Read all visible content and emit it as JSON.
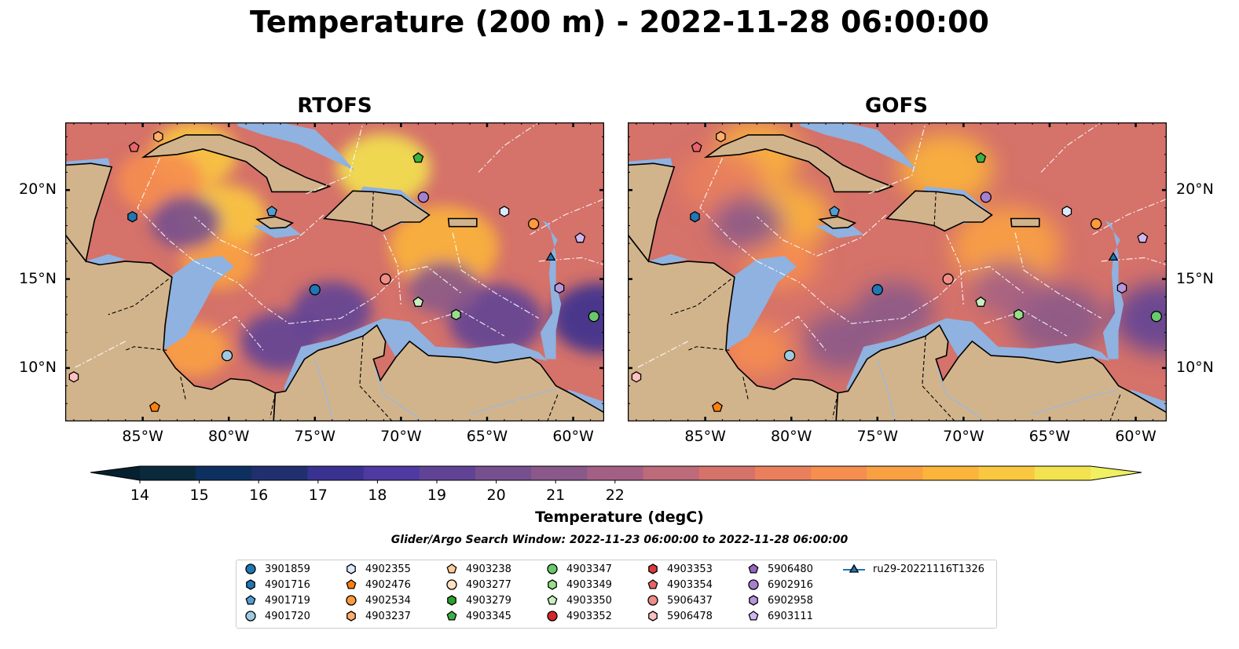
{
  "title": "Temperature (200 m) - 2022-11-28 06:00:00",
  "panels": [
    {
      "id": "rtofs",
      "title": "RTOFS"
    },
    {
      "id": "gofs",
      "title": "GOFS"
    }
  ],
  "map": {
    "lon_ticks": [
      "85°W",
      "80°W",
      "75°W",
      "70°W",
      "65°W",
      "60°W"
    ],
    "lat_ticks": [
      "20°N",
      "15°N",
      "10°N"
    ],
    "land_color": "#d2b48c",
    "shelf_color": "#8fb2e0",
    "extent": {
      "lon": [
        -89.5,
        -58.2
      ],
      "lat": [
        7.0,
        23.8
      ]
    }
  },
  "colorbar": {
    "ticks": [
      "14",
      "15",
      "16",
      "17",
      "18",
      "19",
      "20",
      "21",
      "22"
    ],
    "label": "Temperature (degC)",
    "range": [
      14,
      22
    ],
    "colors": [
      "#0a2a3c",
      "#0e3060",
      "#20306f",
      "#3a3290",
      "#4e3aa0",
      "#614396",
      "#76508e",
      "#8a598a",
      "#a45f84",
      "#bd6a7a",
      "#d5726a",
      "#e97f5d",
      "#f68e4f",
      "#f9a142",
      "#fbb43c",
      "#fac840",
      "#f2e250"
    ],
    "extend": "both",
    "extend_low_color": "#062030",
    "extend_high_color": "#f0f060"
  },
  "search_window": "Glider/Argo Search Window: 2022-11-23 06:00:00 to 2022-11-28 06:00:00",
  "legend": [
    {
      "label": "3901859",
      "marker": "circle",
      "color": "#1f77b4"
    },
    {
      "label": "4901716",
      "marker": "hexagon",
      "color": "#1f77b4"
    },
    {
      "label": "4901719",
      "marker": "pentagon",
      "color": "#4f9fd4"
    },
    {
      "label": "4901720",
      "marker": "circle",
      "color": "#9ecae1"
    },
    {
      "label": "4902355",
      "marker": "hexagon",
      "color": "#dbeafb"
    },
    {
      "label": "4902476",
      "marker": "pentagon",
      "color": "#ff7f0e"
    },
    {
      "label": "4902534",
      "marker": "circle",
      "color": "#ff9a3c"
    },
    {
      "label": "4903237",
      "marker": "hexagon",
      "color": "#ffae6b"
    },
    {
      "label": "4903238",
      "marker": "pentagon",
      "color": "#ffcc99"
    },
    {
      "label": "4903277",
      "marker": "circle",
      "color": "#ffe0c2"
    },
    {
      "label": "4903279",
      "marker": "hexagon",
      "color": "#2ca02c"
    },
    {
      "label": "4903345",
      "marker": "pentagon",
      "color": "#3cb043"
    },
    {
      "label": "4903347",
      "marker": "circle",
      "color": "#69c96b"
    },
    {
      "label": "4903349",
      "marker": "hexagon",
      "color": "#98df8a"
    },
    {
      "label": "4903350",
      "marker": "pentagon",
      "color": "#c7f0c0"
    },
    {
      "label": "4903352",
      "marker": "circle",
      "color": "#d62728"
    },
    {
      "label": "4903353",
      "marker": "hexagon",
      "color": "#d93a3c"
    },
    {
      "label": "4903354",
      "marker": "pentagon",
      "color": "#e8646a"
    },
    {
      "label": "5906437",
      "marker": "circle",
      "color": "#f08c86"
    },
    {
      "label": "5906478",
      "marker": "hexagon",
      "color": "#ffc0c0"
    },
    {
      "label": "5906480",
      "marker": "pentagon",
      "color": "#9467bd"
    },
    {
      "label": "6902916",
      "marker": "circle",
      "color": "#a77fd0"
    },
    {
      "label": "6902958",
      "marker": "hexagon",
      "color": "#b796dd"
    },
    {
      "label": "6903111",
      "marker": "pentagon",
      "color": "#d1b7f0"
    },
    {
      "label": "ru29-20221116T1326",
      "marker": "triangle-line",
      "color": "#1f77b4"
    }
  ],
  "floats": [
    {
      "id": "5906478",
      "marker": "hexagon",
      "color": "#ffc0c0",
      "lon": -89.0,
      "lat": 9.5
    },
    {
      "id": "4902476",
      "marker": "pentagon",
      "color": "#ff7f0e",
      "lon": -84.3,
      "lat": 7.8
    },
    {
      "id": "4903354",
      "marker": "pentagon",
      "color": "#e8646a",
      "lon": -85.5,
      "lat": 22.4
    },
    {
      "id": "4903237",
      "marker": "hexagon",
      "color": "#ffae6b",
      "lon": -84.1,
      "lat": 23.0
    },
    {
      "id": "4901716",
      "marker": "hexagon",
      "color": "#1f77b4",
      "lon": -85.6,
      "lat": 18.5
    },
    {
      "id": "4901719",
      "marker": "pentagon",
      "color": "#4f9fd4",
      "lon": -77.5,
      "lat": 18.8
    },
    {
      "id": "4903345",
      "marker": "pentagon",
      "color": "#3cb043",
      "lon": -69.0,
      "lat": 21.8
    },
    {
      "id": "6902916",
      "marker": "circle",
      "color": "#a77fd0",
      "lon": -68.7,
      "lat": 19.6
    },
    {
      "id": "4902355",
      "marker": "hexagon",
      "color": "#dbeafb",
      "lon": -64.0,
      "lat": 18.8
    },
    {
      "id": "4902534",
      "marker": "circle",
      "color": "#ff9a3c",
      "lon": -62.3,
      "lat": 18.1
    },
    {
      "id": "6903111",
      "marker": "pentagon",
      "color": "#d1b7f0",
      "lon": -59.6,
      "lat": 17.3
    },
    {
      "id": "5906437",
      "marker": "circle",
      "color": "#f08c86",
      "lon": -70.9,
      "lat": 15.0
    },
    {
      "id": "3901859",
      "marker": "circle",
      "color": "#1f77b4",
      "lon": -75.0,
      "lat": 14.4
    },
    {
      "id": "4903350",
      "marker": "pentagon",
      "color": "#c7f0c0",
      "lon": -69.0,
      "lat": 13.7
    },
    {
      "id": "4903349",
      "marker": "hexagon",
      "color": "#98df8a",
      "lon": -66.8,
      "lat": 13.0
    },
    {
      "id": "6902958",
      "marker": "hexagon",
      "color": "#b796dd",
      "lon": -60.8,
      "lat": 14.5
    },
    {
      "id": "4903347",
      "marker": "circle",
      "color": "#69c96b",
      "lon": -58.8,
      "lat": 12.9
    },
    {
      "id": "4901720",
      "marker": "circle",
      "color": "#9ecae1",
      "lon": -80.1,
      "lat": 10.7
    }
  ],
  "glider": {
    "id": "ru29-20221116T1326",
    "color": "#1f77b4",
    "lon": -61.3,
    "lat": 16.2
  }
}
